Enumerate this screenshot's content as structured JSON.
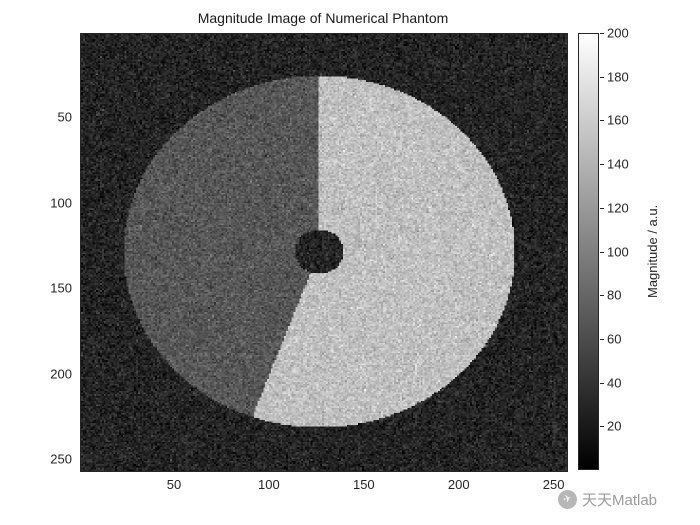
{
  "figure": {
    "title": "Magnitude Image of Numerical Phantom",
    "watermark_text": "天天Matlab",
    "watermark_logo_glyph": "✈"
  },
  "chart_data": {
    "type": "heatmap",
    "title": "Magnitude Image of Numerical Phantom",
    "xlabel": "",
    "ylabel": "",
    "x_ticks": [
      50,
      100,
      150,
      200,
      250
    ],
    "y_ticks": [
      50,
      100,
      150,
      200,
      250
    ],
    "x_range": [
      0.5,
      256.5
    ],
    "y_range": [
      0.5,
      256.5
    ],
    "grid": false,
    "colormap": "gray",
    "colorbar": {
      "label": "Magnitude / a.u.",
      "ticks": [
        20,
        40,
        60,
        80,
        100,
        120,
        140,
        160,
        180,
        200
      ],
      "range": [
        0,
        200
      ],
      "position": "right"
    },
    "phantom": {
      "grid": 256,
      "background_magnitude": 28,
      "noise_sigma": 12,
      "disk": {
        "cx": 125,
        "cy": 127,
        "radius": 103
      },
      "hole_radius": 13,
      "bright_sector": {
        "start_deg_cw_from_top": 0,
        "end_deg_cw_from_top": 200,
        "magnitude": 150
      },
      "dim_sector": {
        "magnitude": 68
      },
      "seed": 123456789
    }
  }
}
